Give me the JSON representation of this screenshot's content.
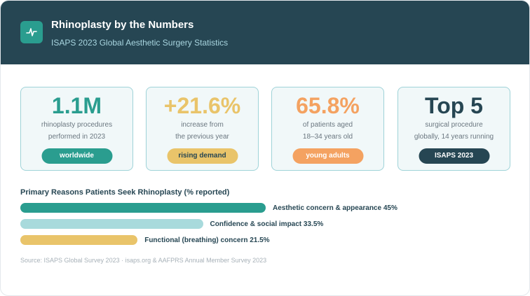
{
  "header": {
    "title": "Rhinoplasty by the Numbers",
    "subtitle": "ISAPS 2023 Global Aesthetic Surgery Statistics",
    "icon": "pulse-icon"
  },
  "stats": [
    {
      "value": "1.1M",
      "line1": "rhinoplasty procedures",
      "line2": "performed in 2023",
      "badge": "worldwide",
      "value_color": "#2a9d8f",
      "badge_bg": "#2a9d8f",
      "badge_fg": "#ffffff"
    },
    {
      "value": "+21.6%",
      "line1": "increase from",
      "line2": "the previous year",
      "badge": "rising demand",
      "value_color": "#e9c46a",
      "badge_bg": "#e9c46a",
      "badge_fg": "#264653"
    },
    {
      "value": "65.8%",
      "line1": "of patients aged",
      "line2": "18–34 years old",
      "badge": "young adults",
      "value_color": "#f4a261",
      "badge_bg": "#f4a261",
      "badge_fg": "#ffffff"
    },
    {
      "value": "Top 5",
      "line1": "surgical procedure",
      "line2": "globally, 14 years running",
      "badge": "ISAPS 2023",
      "value_color": "#264653",
      "badge_bg": "#264653",
      "badge_fg": "#ffffff"
    }
  ],
  "reasons": {
    "title": "Primary Reasons Patients Seek Rhinoplasty (% reported)",
    "items": [
      {
        "label": "Aesthetic concern & appearance 45%",
        "percent": 45,
        "color": "#2a9d8f"
      },
      {
        "label": "Confidence & social impact 33.5%",
        "percent": 33.5,
        "color": "#a8dadc"
      },
      {
        "label": "Functional (breathing) concern 21.5%",
        "percent": 21.5,
        "color": "#e9c46a"
      }
    ]
  },
  "source": "Source: ISAPS Global Survey 2023 · isaps.org & AAFPRS Annual Member Survey 2023"
}
